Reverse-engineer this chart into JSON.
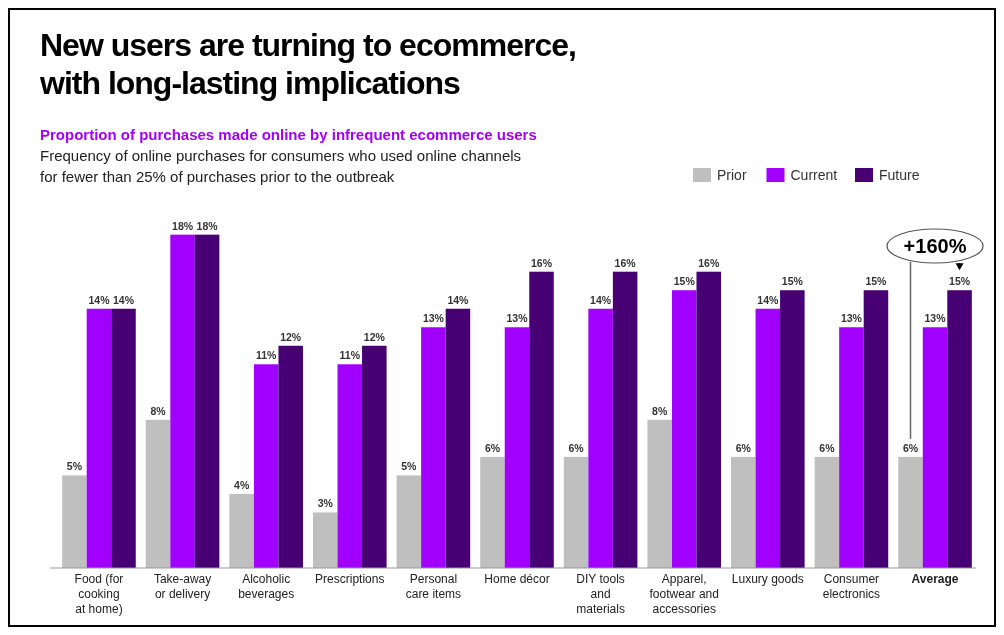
{
  "chart_data": {
    "type": "bar",
    "title": "New users are turning to ecommerce,\nwith long-lasting implications",
    "subtitle": "Proportion of purchases made online by infrequent ecommerce users\nFrequency of online purchases for consumers who used online channels\nfor fewer than 25% of purchases prior to the outbreak",
    "categories": [
      "Food (for\ncooking\nat home)",
      "Take-away\nor delivery",
      "Alcoholic\nbeverages",
      "Prescriptions",
      "Personal\ncare items",
      "Home décor",
      "DIY tools\nand\nmaterials",
      "Apparel,\nfootwear and\naccessories",
      "Luxury  goods",
      "Consumer\nelectronics",
      "Average"
    ],
    "series": [
      {
        "name": "Prior",
        "color": "#bfbfbf",
        "values": [
          5,
          8,
          4,
          3,
          5,
          6,
          6,
          8,
          6,
          6,
          6
        ],
        "value_labels": [
          "5%",
          "8%",
          "4%",
          "3%",
          "5%",
          "6%",
          "6%",
          "8%",
          "6%",
          "6%",
          "6%"
        ]
      },
      {
        "name": "Current",
        "color": "#a100ff",
        "values": [
          14,
          18,
          11,
          11,
          13,
          13,
          14,
          15,
          14,
          13,
          13
        ],
        "value_labels": [
          "14%",
          "18%",
          "11%",
          "11%",
          "13%",
          "13%",
          "14%",
          "15%",
          "14%",
          "13%",
          "13%"
        ]
      },
      {
        "name": "Future",
        "color": "#460073",
        "values": [
          14,
          18,
          12,
          12,
          14,
          16,
          16,
          16,
          15,
          15,
          15
        ],
        "value_labels": [
          "14%",
          "18%",
          "12%",
          "12%",
          "14%",
          "16%",
          "16%",
          "16%",
          "15%",
          "15%",
          "15%"
        ]
      }
    ],
    "legend": "top right",
    "annotations": [
      "+160%"
    ]
  }
}
